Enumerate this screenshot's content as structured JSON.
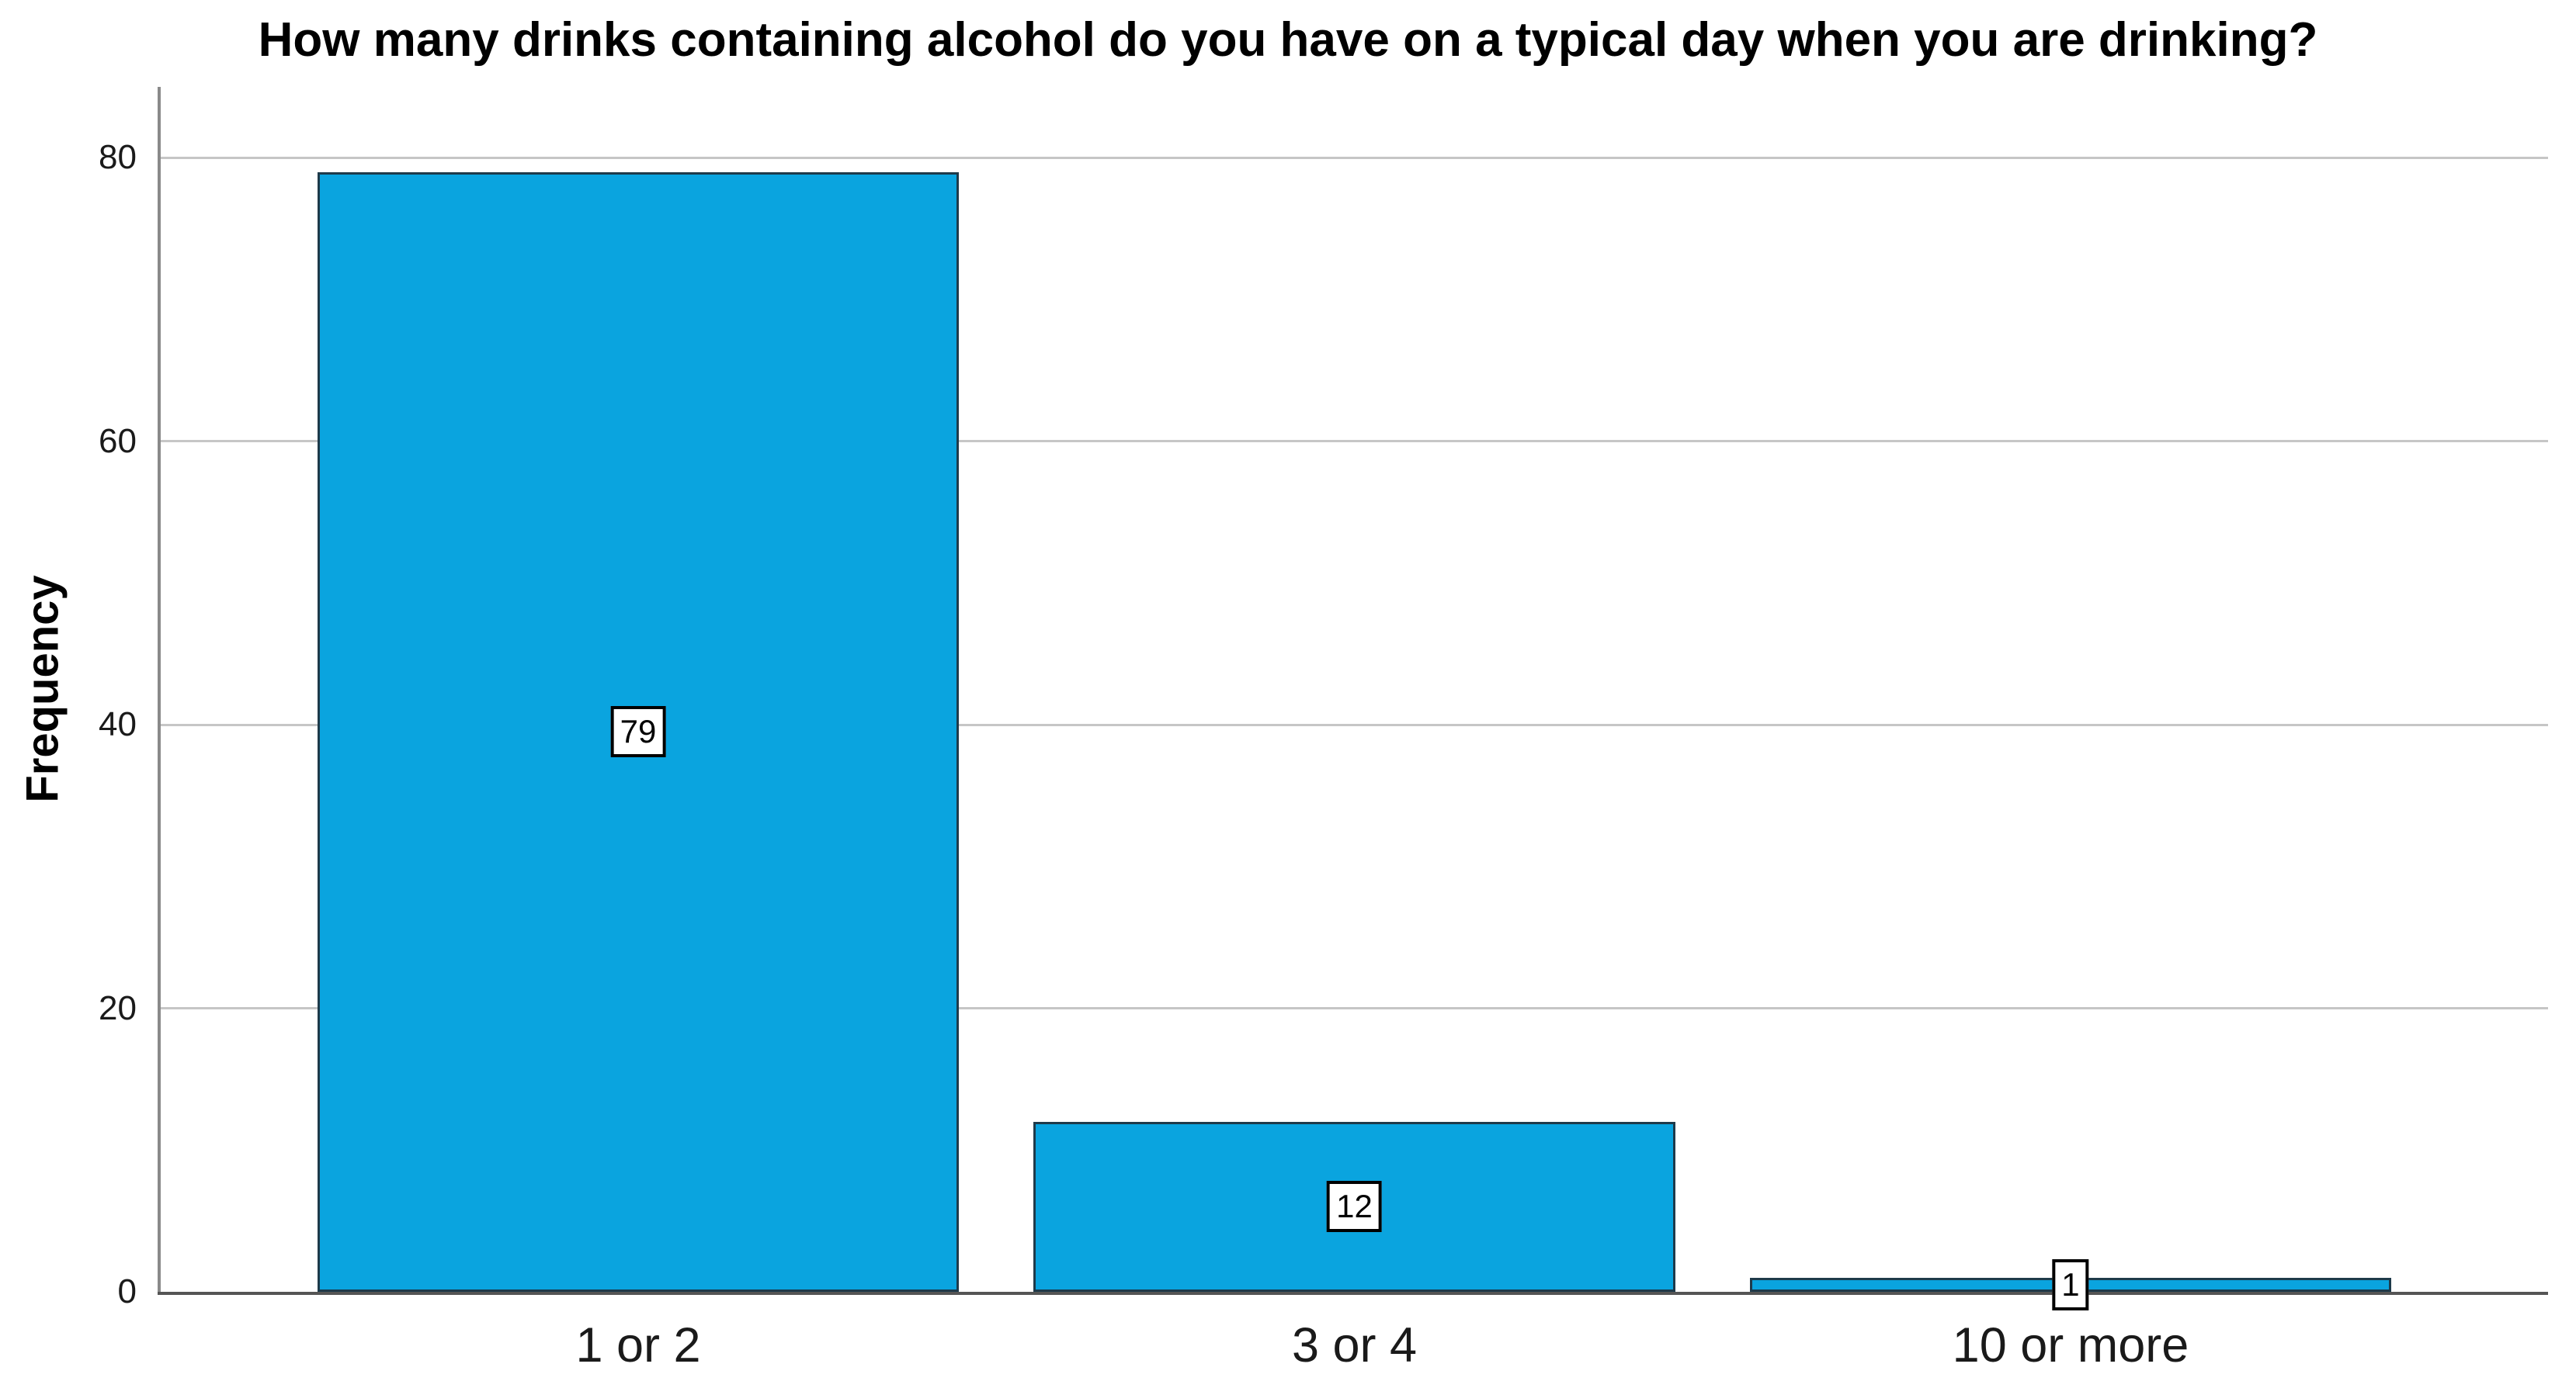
{
  "chart_data": {
    "type": "bar",
    "title": "How many drinks containing alcohol do you have on a typical day when you are drinking?",
    "xlabel": "",
    "ylabel": "Frequency",
    "categories": [
      "1 or 2",
      "3 or 4",
      "10 or more"
    ],
    "values": [
      79,
      12,
      1
    ],
    "yticks": [
      0,
      20,
      40,
      60,
      80
    ],
    "ylim": [
      0,
      85
    ],
    "grid": "horizontal gridlines at y ticks, behind bars",
    "legend": "none",
    "bar_value_labels": "white boxes with black border centered at mid-height of each bar",
    "colors": {
      "bar_fill": "#0AA4DF",
      "bar_border": "#1E3A4A",
      "gridline": "#C6C6C6",
      "y_axis_line": "#8A8A8A",
      "x_axis_line": "#555555",
      "text": "#111111",
      "badge_background": "#FFFFFF",
      "badge_border": "#000000",
      "background": "#FFFFFF"
    }
  }
}
